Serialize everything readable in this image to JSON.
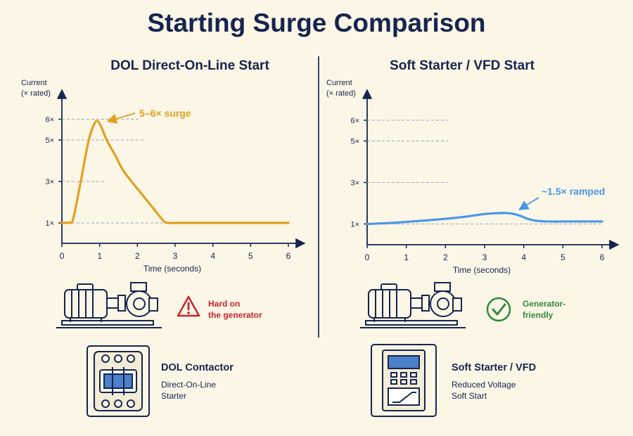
{
  "title": "Starting Surge Comparison",
  "colors": {
    "navy": "#16254f",
    "orange": "#e0a11e",
    "blue": "#4a97e6",
    "red": "#c8242b",
    "green": "#2f8a3e",
    "grid": "#9aa8c0"
  },
  "chart_data": [
    {
      "type": "line",
      "title": "DOL Direct-On-Line Start",
      "ylabel": "Current\n(× rated)",
      "xlabel": "Time (seconds)",
      "xlim": [
        0,
        6
      ],
      "ylim": [
        0,
        6.6
      ],
      "x_ticks": [
        "0",
        "1",
        "2",
        "3",
        "4",
        "5",
        "6"
      ],
      "y_ticks": [
        {
          "value": 1,
          "label": "1×"
        },
        {
          "value": 3,
          "label": "3×"
        },
        {
          "value": 5,
          "label": "5×"
        },
        {
          "value": 6,
          "label": "6×"
        }
      ],
      "grid": "dashed reference lines at y ticks",
      "color": "#e0a11e",
      "x": [
        0,
        0.2,
        0.3,
        0.5,
        0.7,
        0.85,
        0.95,
        1.05,
        1.2,
        1.4,
        1.6,
        1.8,
        2.0,
        2.2,
        2.4,
        2.6,
        2.75,
        3.0,
        4.0,
        5.0,
        6.0
      ],
      "y": [
        1.0,
        1.02,
        1.2,
        3.0,
        4.9,
        5.75,
        5.9,
        5.6,
        4.95,
        4.3,
        3.6,
        3.1,
        2.65,
        2.2,
        1.75,
        1.3,
        1.02,
        1.0,
        1.0,
        1.0,
        1.0
      ],
      "annotation": {
        "text": "5–6× surge",
        "x": 1.0,
        "y": 5.9
      }
    },
    {
      "type": "line",
      "title": "Soft Starter / VFD Start",
      "ylabel": "Current\n(× rated)",
      "xlabel": "Time (seconds)",
      "xlim": [
        0,
        6
      ],
      "ylim": [
        0,
        6.6
      ],
      "x_ticks": [
        "0",
        "1",
        "2",
        "3",
        "4",
        "5",
        "6"
      ],
      "y_ticks": [
        {
          "value": 1,
          "label": "1×"
        },
        {
          "value": 3,
          "label": "3×"
        },
        {
          "value": 5,
          "label": "5×"
        },
        {
          "value": 6,
          "label": "6×"
        }
      ],
      "grid": "dashed reference lines at y ticks",
      "color": "#4a97e6",
      "x": [
        0,
        0.5,
        1.0,
        1.5,
        2.0,
        2.5,
        3.0,
        3.3,
        3.5,
        3.7,
        3.9,
        4.1,
        4.3,
        4.6,
        5.0,
        6.0
      ],
      "y": [
        1.0,
        1.04,
        1.1,
        1.17,
        1.25,
        1.35,
        1.48,
        1.52,
        1.53,
        1.5,
        1.4,
        1.25,
        1.16,
        1.12,
        1.12,
        1.12
      ],
      "annotation": {
        "text": "~1.5× ramped",
        "x": 3.6,
        "y": 1.53
      }
    }
  ],
  "left": {
    "warning_text": [
      "Hard on",
      "the generator"
    ],
    "device_title": "DOL Contactor",
    "device_sub": [
      "Direct-On-Line",
      "Starter"
    ]
  },
  "right": {
    "ok_text": [
      "Generator-",
      "friendly"
    ],
    "device_title": "Soft Starter / VFD",
    "device_sub": [
      "Reduced Voltage",
      "Soft Start"
    ]
  },
  "icons": [
    "motor-pump-icon",
    "warning-triangle-icon",
    "check-circle-icon",
    "contactor-icon",
    "vfd-drive-icon"
  ]
}
